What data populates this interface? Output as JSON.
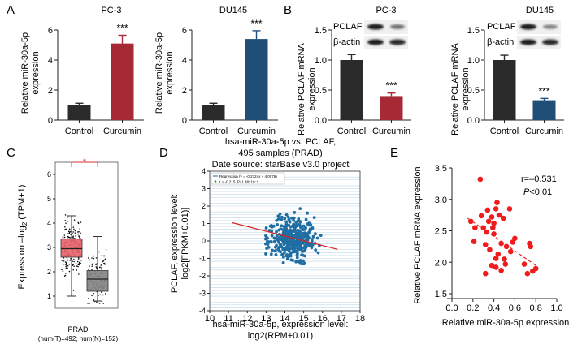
{
  "panel_letters": {
    "A": "A",
    "B": "B",
    "C": "C",
    "D": "D",
    "E": "E"
  },
  "colors": {
    "control": "#2b2b2b",
    "curcumin_pc3": "#a52a36",
    "curcumin_du145": "#1f4e79",
    "tumor_box": "#e8636a",
    "normal_box": "#828282",
    "scatter_d": "#1f6ea3",
    "scatter_e": "#ee1c1c",
    "fit_d": "#dd2222",
    "fit_e": "#ee2222"
  },
  "chart_data": [
    {
      "id": "A1",
      "type": "bar",
      "title": "PC-3",
      "ylabel": "Relative miR-30a-5p expression",
      "categories": [
        "Control",
        "Curcumin"
      ],
      "values": [
        1.0,
        5.1
      ],
      "errors": [
        0.12,
        0.55
      ],
      "ylim": [
        0,
        6
      ],
      "yticks": [
        "0",
        "2",
        "4",
        "6"
      ],
      "significance": "***"
    },
    {
      "id": "A2",
      "type": "bar",
      "title": "DU145",
      "ylabel": "Relative miR-30a-5p expression",
      "categories": [
        "Control",
        "Curcumin"
      ],
      "values": [
        1.0,
        5.4
      ],
      "errors": [
        0.12,
        0.55
      ],
      "ylim": [
        0,
        6
      ],
      "yticks": [
        "0",
        "2",
        "4",
        "6"
      ],
      "significance": "***"
    },
    {
      "id": "B1",
      "type": "bar",
      "title": "PC-3",
      "ylabel": "Relative PCLAF mRNA expression",
      "categories": [
        "Control",
        "Curcumin"
      ],
      "values": [
        1.0,
        0.4
      ],
      "errors": [
        0.09,
        0.05
      ],
      "ylim": [
        0,
        1.5
      ],
      "yticks": [
        "0.0",
        "0.5",
        "1.0",
        "1.5"
      ],
      "significance": "***",
      "blot_labels": [
        "PCLAF",
        "β-actin"
      ]
    },
    {
      "id": "B2",
      "type": "bar",
      "title": "DU145",
      "ylabel": "Relative PCLAF mRNA expression",
      "categories": [
        "Control",
        "Curcumin"
      ],
      "values": [
        1.0,
        0.33
      ],
      "errors": [
        0.08,
        0.03
      ],
      "ylim": [
        0,
        1.5
      ],
      "yticks": [
        "0.0",
        "0.5",
        "1.0",
        "1.5"
      ],
      "significance": "***",
      "blot_labels": [
        "PCLAF",
        "β-actin"
      ]
    },
    {
      "id": "C",
      "type": "box",
      "ylabel_main": "Expression –log",
      "ylabel_sub": "2",
      "ylabel_tail": " (TPM+1)",
      "yticks": [
        "1",
        "2",
        "3",
        "4",
        "5",
        "6"
      ],
      "ylim": [
        0.5,
        6.5
      ],
      "xlabel": "PRAD",
      "note": "(num(T)=492; num(N)=152)",
      "significance": "*",
      "boxes": [
        {
          "group": "T",
          "q1": 2.6,
          "median": 2.95,
          "q3": 3.35,
          "whisker_low": 1.0,
          "whisker_high": 4.3
        },
        {
          "group": "N",
          "q1": 1.2,
          "median": 1.7,
          "q3": 2.05,
          "whisker_low": 0.8,
          "whisker_high": 3.45
        }
      ]
    },
    {
      "id": "D",
      "type": "scatter",
      "title_lines": [
        "hsa-miR-30a-5p vs. PCLAF,",
        "495 samples (PRAD)",
        "Date source: starBase v3.0 project"
      ],
      "ylabel_lines": [
        "PCLAF, expression level:",
        "log2[FPKM+0.01)]"
      ],
      "xlabel_lines": [
        "hsa-miR-30a-5p, expression level:",
        "log2(RPM+0.01)"
      ],
      "xticks": [
        "10",
        "11",
        "12",
        "13",
        "14",
        "15",
        "16",
        "17",
        "18"
      ],
      "yticks": [
        "-4",
        "-3",
        "-2",
        "-1",
        "0",
        "1",
        "2",
        "3",
        "4"
      ],
      "xlim": [
        10,
        18
      ],
      "ylim": [
        -4,
        4
      ],
      "legend": [
        "Regression (y = -0.2724x + 4.0976)",
        "r = -0.215, P=1.40x10⁻⁶"
      ],
      "fit": {
        "slope": -0.2724,
        "intercept": 4.0976,
        "x_range": [
          11.2,
          16.8
        ]
      },
      "n_points": 495,
      "x_center": 14.4,
      "x_sd": 0.85,
      "y_center": 0.15,
      "y_sd": 0.85
    },
    {
      "id": "E",
      "type": "scatter",
      "ylabel": "Relative PCLAF mRNA expression",
      "xlabel": "Relative miR-30a-5p expression",
      "xticks": [
        "0.0",
        "0.2",
        "0.4",
        "0.6",
        "0.8",
        "1.0"
      ],
      "yticks": [
        "1.5",
        "2.0",
        "2.5",
        "3.0",
        "3.5"
      ],
      "xlim": [
        0,
        1.0
      ],
      "ylim": [
        1.5,
        3.5
      ],
      "annotation_r": "r=–0.531",
      "annotation_p_italic": "P",
      "annotation_p_tail": "<0.01",
      "fit": {
        "x_range": [
          0.15,
          0.8
        ],
        "y_range": [
          2.7,
          1.95
        ]
      },
      "points": [
        [
          0.27,
          3.32
        ],
        [
          0.18,
          2.65
        ],
        [
          0.22,
          2.55
        ],
        [
          0.21,
          2.33
        ],
        [
          0.28,
          2.74
        ],
        [
          0.3,
          2.55
        ],
        [
          0.33,
          2.48
        ],
        [
          0.35,
          2.65
        ],
        [
          0.34,
          2.83
        ],
        [
          0.38,
          2.72
        ],
        [
          0.4,
          2.62
        ],
        [
          0.42,
          2.85
        ],
        [
          0.43,
          2.95
        ],
        [
          0.39,
          2.55
        ],
        [
          0.45,
          2.75
        ],
        [
          0.49,
          2.7
        ],
        [
          0.55,
          2.85
        ],
        [
          0.32,
          2.28
        ],
        [
          0.36,
          2.2
        ],
        [
          0.4,
          2.45
        ],
        [
          0.42,
          2.06
        ],
        [
          0.44,
          2.13
        ],
        [
          0.47,
          2.3
        ],
        [
          0.5,
          2.05
        ],
        [
          0.52,
          2.25
        ],
        [
          0.56,
          2.17
        ],
        [
          0.58,
          2.32
        ],
        [
          0.38,
          1.95
        ],
        [
          0.42,
          1.92
        ],
        [
          0.47,
          1.87
        ],
        [
          0.32,
          1.82
        ],
        [
          0.74,
          2.3
        ],
        [
          0.75,
          2.25
        ],
        [
          0.69,
          1.97
        ],
        [
          0.77,
          1.86
        ],
        [
          0.8,
          1.9
        ],
        [
          0.72,
          1.82
        ],
        [
          0.51,
          1.97
        ],
        [
          0.6,
          2.38
        ]
      ]
    }
  ]
}
